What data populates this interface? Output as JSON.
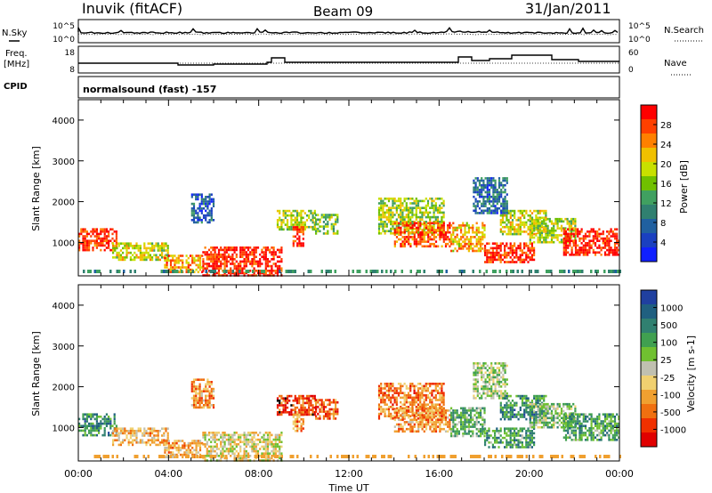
{
  "header": {
    "station": "Inuvik (fitACF)",
    "beam": "Beam 09",
    "date": "31/Jan/2011"
  },
  "top_panels": {
    "nsky_label": "N.Sky",
    "nsearch_label": "N.Search",
    "nsky_ticks": [
      "10^5",
      "10^0"
    ],
    "nsearch_ticks": [
      "10^5",
      "10^0"
    ],
    "freq_label": "Freq.",
    "freq_unit": "[MHz]",
    "freq_ticks": [
      "18",
      "8"
    ],
    "nave_label": "Nave",
    "nave_ticks": [
      "60",
      "0"
    ],
    "cpid_label": "CPID",
    "cpid_text": "normalsound (fast) -157"
  },
  "chart_data": [
    {
      "type": "heatmap",
      "name": "power-panel",
      "ylabel": "Slant Range [km]",
      "yticks": [
        1000,
        2000,
        3000,
        4000
      ],
      "ylim": [
        180,
        4500
      ],
      "xlim": [
        0,
        24
      ],
      "colorbar_label": "Power [dB]",
      "colorbar_ticks": [
        "28",
        "24",
        "20",
        "16",
        "12",
        "8",
        "4"
      ],
      "colors": [
        "#ff0000",
        "#ff4000",
        "#ff8000",
        "#f0c000",
        "#c8e000",
        "#70c000",
        "#40a060",
        "#308070",
        "#2060a0",
        "#1a40c0",
        "#1020ff"
      ],
      "echo_regions": [
        {
          "t": [
            0.0,
            1.7
          ],
          "r": [
            800,
            1350
          ],
          "lev": 0.9
        },
        {
          "t": [
            1.5,
            4.0
          ],
          "r": [
            600,
            1000
          ],
          "lev": 0.6
        },
        {
          "t": [
            3.8,
            5.5
          ],
          "r": [
            250,
            700
          ],
          "lev": 0.75
        },
        {
          "t": [
            5.5,
            9.0
          ],
          "r": [
            200,
            900
          ],
          "lev": 0.92
        },
        {
          "t": [
            8.8,
            10.5
          ],
          "r": [
            1300,
            1800
          ],
          "lev": 0.55
        },
        {
          "t": [
            9.5,
            10.0
          ],
          "r": [
            900,
            1400
          ],
          "lev": 0.9
        },
        {
          "t": [
            10.5,
            11.5
          ],
          "r": [
            1200,
            1700
          ],
          "lev": 0.5
        },
        {
          "t": [
            13.3,
            16.2
          ],
          "r": [
            1200,
            2100
          ],
          "lev": 0.55
        },
        {
          "t": [
            14.0,
            16.5
          ],
          "r": [
            900,
            1500
          ],
          "lev": 0.85
        },
        {
          "t": [
            16.5,
            18.0
          ],
          "r": [
            800,
            1500
          ],
          "lev": 0.7
        },
        {
          "t": [
            18.0,
            20.2
          ],
          "r": [
            500,
            1000
          ],
          "lev": 0.9
        },
        {
          "t": [
            18.7,
            20.7
          ],
          "r": [
            1200,
            1800
          ],
          "lev": 0.6
        },
        {
          "t": [
            20.0,
            22.0
          ],
          "r": [
            1000,
            1600
          ],
          "lev": 0.55
        },
        {
          "t": [
            21.5,
            24.0
          ],
          "r": [
            700,
            1350
          ],
          "lev": 0.95
        },
        {
          "t": [
            5.0,
            6.0
          ],
          "r": [
            1500,
            2200
          ],
          "lev": 0.2
        },
        {
          "t": [
            17.5,
            19.0
          ],
          "r": [
            1700,
            2600
          ],
          "lev": 0.25
        }
      ]
    },
    {
      "type": "heatmap",
      "name": "velocity-panel",
      "ylabel": "Slant Range [km]",
      "yticks": [
        1000,
        2000,
        3000,
        4000
      ],
      "ylim": [
        180,
        4500
      ],
      "xlim": [
        0,
        24
      ],
      "xticks": [
        "00:00",
        "04:00",
        "08:00",
        "12:00",
        "16:00",
        "20:00",
        "00:00"
      ],
      "xlabel": "Time UT",
      "colorbar_label": "Velocity [m s-1]",
      "colorbar_ticks": [
        "1000",
        "500",
        "100",
        "25",
        "-25",
        "-100",
        "-500",
        "-1000"
      ],
      "colors": [
        "#2040a0",
        "#206080",
        "#308070",
        "#40a050",
        "#70c030",
        "#c0c0b0",
        "#f0d070",
        "#f0a030",
        "#f07010",
        "#f03000",
        "#e00000"
      ],
      "echo_regions": [
        {
          "t": [
            0.0,
            1.7
          ],
          "r": [
            800,
            1350
          ],
          "lev": 0.75
        },
        {
          "t": [
            1.5,
            4.0
          ],
          "r": [
            600,
            1000
          ],
          "lev": 0.35
        },
        {
          "t": [
            3.8,
            5.5
          ],
          "r": [
            250,
            700
          ],
          "lev": 0.35
        },
        {
          "t": [
            5.5,
            9.0
          ],
          "r": [
            200,
            900
          ],
          "lev": 0.45
        },
        {
          "t": [
            8.8,
            10.5
          ],
          "r": [
            1300,
            1800
          ],
          "lev": 0.15
        },
        {
          "t": [
            9.5,
            10.0
          ],
          "r": [
            900,
            1400
          ],
          "lev": 0.25
        },
        {
          "t": [
            10.5,
            11.5
          ],
          "r": [
            1200,
            1700
          ],
          "lev": 0.2
        },
        {
          "t": [
            13.3,
            16.2
          ],
          "r": [
            1200,
            2100
          ],
          "lev": 0.25
        },
        {
          "t": [
            14.0,
            16.5
          ],
          "r": [
            900,
            1500
          ],
          "lev": 0.3
        },
        {
          "t": [
            16.5,
            18.0
          ],
          "r": [
            800,
            1500
          ],
          "lev": 0.65
        },
        {
          "t": [
            18.0,
            20.2
          ],
          "r": [
            500,
            1000
          ],
          "lev": 0.7
        },
        {
          "t": [
            18.7,
            20.7
          ],
          "r": [
            1200,
            1800
          ],
          "lev": 0.75
        },
        {
          "t": [
            20.0,
            22.0
          ],
          "r": [
            1000,
            1600
          ],
          "lev": 0.6
        },
        {
          "t": [
            21.5,
            24.0
          ],
          "r": [
            700,
            1350
          ],
          "lev": 0.7
        },
        {
          "t": [
            5.0,
            6.0
          ],
          "r": [
            1500,
            2200
          ],
          "lev": 0.3
        },
        {
          "t": [
            17.5,
            19.0
          ],
          "r": [
            1700,
            2600
          ],
          "lev": 0.55
        }
      ]
    }
  ]
}
